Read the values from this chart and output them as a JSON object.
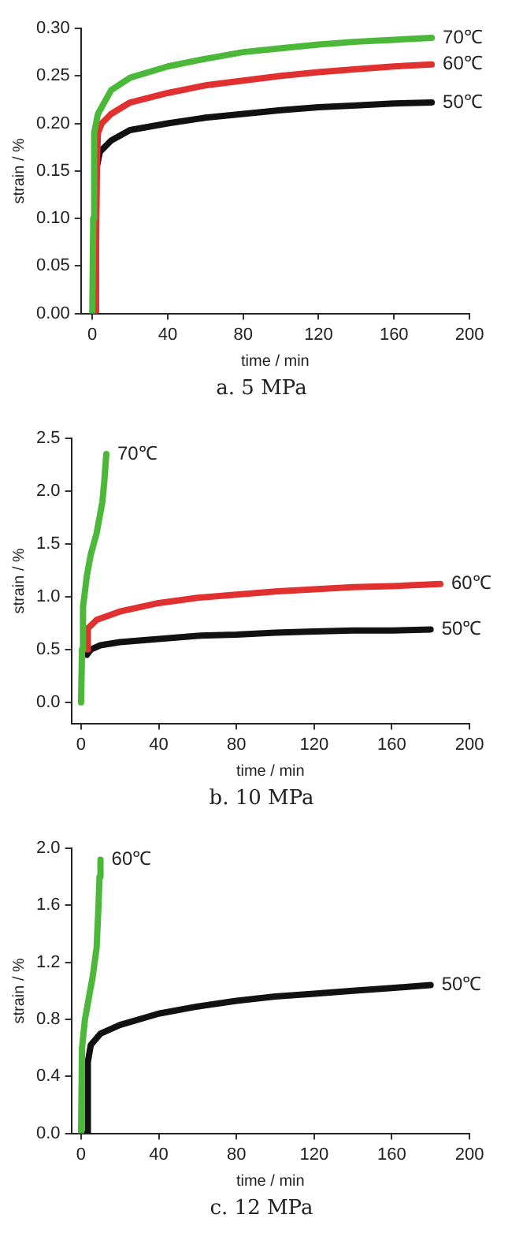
{
  "chart_data": [
    {
      "type": "line",
      "title": "a. 5 MPa",
      "xlabel": "time / min",
      "ylabel": "strain / %",
      "xlim": [
        -6,
        200
      ],
      "xticks": [
        0,
        40,
        80,
        120,
        160,
        200
      ],
      "ylim": [
        0,
        0.3
      ],
      "yticks": [
        {
          "value": 0,
          "label": "0.00"
        },
        {
          "value": 0.05,
          "label": "0.05"
        },
        {
          "value": 0.1,
          "label": "0.10"
        },
        {
          "value": 0.15,
          "label": "0.15"
        },
        {
          "value": 0.2,
          "label": "0.20"
        },
        {
          "value": 0.25,
          "label": "0.25"
        },
        {
          "value": 0.3,
          "label": "0.30"
        }
      ],
      "marker": "none",
      "series": [
        {
          "name": "70℃",
          "color": "#4cb83a",
          "x": [
            0,
            0.5,
            1,
            3,
            10,
            20,
            40,
            60,
            80,
            100,
            120,
            140,
            160,
            180
          ],
          "values": [
            0,
            0.1,
            0.19,
            0.21,
            0.235,
            0.248,
            0.26,
            0.268,
            0.275,
            0.279,
            0.283,
            0.286,
            0.288,
            0.29
          ]
        },
        {
          "name": "60℃",
          "color": "#e03030",
          "x": [
            1.5,
            2,
            2.5,
            3,
            5,
            10,
            20,
            40,
            60,
            80,
            100,
            120,
            140,
            160,
            180
          ],
          "values": [
            0,
            0.07,
            0.16,
            0.19,
            0.2,
            0.21,
            0.222,
            0.232,
            0.24,
            0.245,
            0.25,
            0.254,
            0.257,
            0.26,
            0.262
          ]
        },
        {
          "name": "50℃",
          "color": "#111111",
          "x": [
            2.5,
            4,
            10,
            20,
            40,
            60,
            80,
            100,
            120,
            140,
            160,
            180
          ],
          "values": [
            0.155,
            0.17,
            0.182,
            0.193,
            0.2,
            0.206,
            0.21,
            0.214,
            0.217,
            0.219,
            0.221,
            0.222
          ]
        }
      ]
    },
    {
      "type": "line",
      "title": "b. 10 MPa",
      "xlabel": "time / min",
      "ylabel": "strain / %",
      "xlim": [
        -5,
        200
      ],
      "xticks": [
        0,
        40,
        80,
        120,
        160,
        200
      ],
      "ylim": [
        -0.2,
        2.5
      ],
      "yticks": [
        {
          "value": 0,
          "label": "0.0"
        },
        0.5,
        {
          "value": 1,
          "label": "1.0"
        },
        1.5,
        {
          "value": 2,
          "label": "2.0"
        },
        2.5
      ],
      "marker": "none",
      "series": [
        {
          "name": "70℃",
          "color": "#4cb83a",
          "x": [
            0,
            0.5,
            1,
            3,
            5,
            8,
            11,
            12,
            13
          ],
          "values": [
            0,
            0.5,
            0.9,
            1.2,
            1.4,
            1.6,
            1.9,
            2.1,
            2.35
          ]
        },
        {
          "name": "60℃",
          "color": "#e03030",
          "x": [
            3,
            3.5,
            8,
            20,
            40,
            60,
            80,
            100,
            120,
            140,
            160,
            185
          ],
          "values": [
            0.5,
            0.7,
            0.78,
            0.86,
            0.94,
            0.99,
            1.02,
            1.05,
            1.07,
            1.09,
            1.1,
            1.12
          ]
        },
        {
          "name": "50℃",
          "color": "#111111",
          "x": [
            3,
            5,
            10,
            20,
            40,
            60,
            80,
            100,
            120,
            140,
            160,
            180
          ],
          "values": [
            0.45,
            0.5,
            0.54,
            0.57,
            0.6,
            0.63,
            0.64,
            0.66,
            0.67,
            0.68,
            0.68,
            0.69
          ]
        }
      ]
    },
    {
      "type": "line",
      "title": "c. 12 MPa",
      "xlabel": "time / min",
      "ylabel": "strain / %",
      "xlim": [
        -5,
        200
      ],
      "xticks": [
        0,
        40,
        80,
        120,
        160,
        200
      ],
      "ylim": [
        0,
        2
      ],
      "yticks": [
        {
          "value": 0,
          "label": "0.0"
        },
        0.4,
        0.8,
        1.2,
        1.6,
        {
          "value": 2,
          "label": "2.0"
        }
      ],
      "marker": "none",
      "series": [
        {
          "name": "60℃",
          "color": "#4cb83a",
          "x": [
            0,
            0.5,
            2,
            4,
            6,
            8,
            9,
            9.5,
            10
          ],
          "values": [
            0,
            0.6,
            0.8,
            0.95,
            1.1,
            1.3,
            1.6,
            1.8,
            1.92
          ]
        },
        {
          "name": "50℃",
          "color": "#111111",
          "x": [
            3,
            3.5,
            5,
            10,
            20,
            40,
            60,
            80,
            100,
            120,
            140,
            160,
            180
          ],
          "values": [
            0,
            0.5,
            0.62,
            0.7,
            0.76,
            0.84,
            0.89,
            0.93,
            0.96,
            0.98,
            1,
            1.02,
            1.04
          ]
        }
      ]
    }
  ]
}
